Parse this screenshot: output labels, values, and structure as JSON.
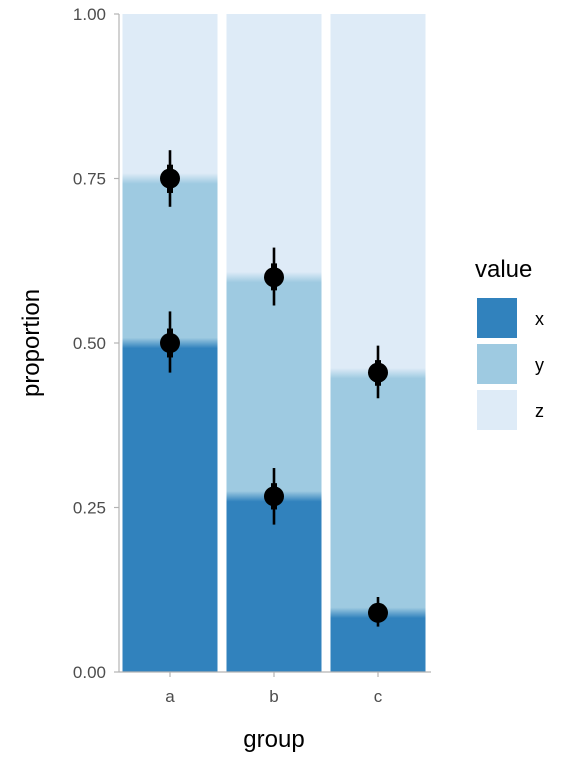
{
  "chart_data": {
    "type": "bar",
    "subtype": "stacked-proportion-with-point-intervals",
    "title": "",
    "xlabel": "group",
    "ylabel": "proportion",
    "ylim": [
      0,
      1
    ],
    "yticks": [
      "0.00",
      "0.25",
      "0.50",
      "0.75",
      "1.00"
    ],
    "categories": [
      "a",
      "b",
      "c"
    ],
    "legend": {
      "title": "value",
      "position": "right"
    },
    "series": [
      {
        "name": "x",
        "color": "#3182bd",
        "values": [
          0.5,
          0.267,
          0.09
        ]
      },
      {
        "name": "y",
        "color": "#9ecae1",
        "values": [
          0.25,
          0.333,
          0.364
        ]
      },
      {
        "name": "z",
        "color": "#deebf7",
        "values": [
          0.25,
          0.4,
          0.546
        ]
      }
    ],
    "points": [
      {
        "group": "a",
        "y": 0.5,
        "inner": [
          0.478,
          0.522
        ],
        "outer": [
          0.455,
          0.548
        ]
      },
      {
        "group": "a",
        "y": 0.75,
        "inner": [
          0.728,
          0.771
        ],
        "outer": [
          0.707,
          0.793
        ]
      },
      {
        "group": "b",
        "y": 0.6,
        "inner": [
          0.58,
          0.621
        ],
        "outer": [
          0.557,
          0.645
        ]
      },
      {
        "group": "b",
        "y": 0.267,
        "inner": [
          0.247,
          0.287
        ],
        "outer": [
          0.224,
          0.31
        ]
      },
      {
        "group": "c",
        "y": 0.455,
        "inner": [
          0.435,
          0.474
        ],
        "outer": [
          0.416,
          0.496
        ]
      },
      {
        "group": "c",
        "y": 0.09,
        "inner": [
          0.08,
          0.1
        ],
        "outer": [
          0.069,
          0.114
        ]
      }
    ],
    "grid": false
  }
}
